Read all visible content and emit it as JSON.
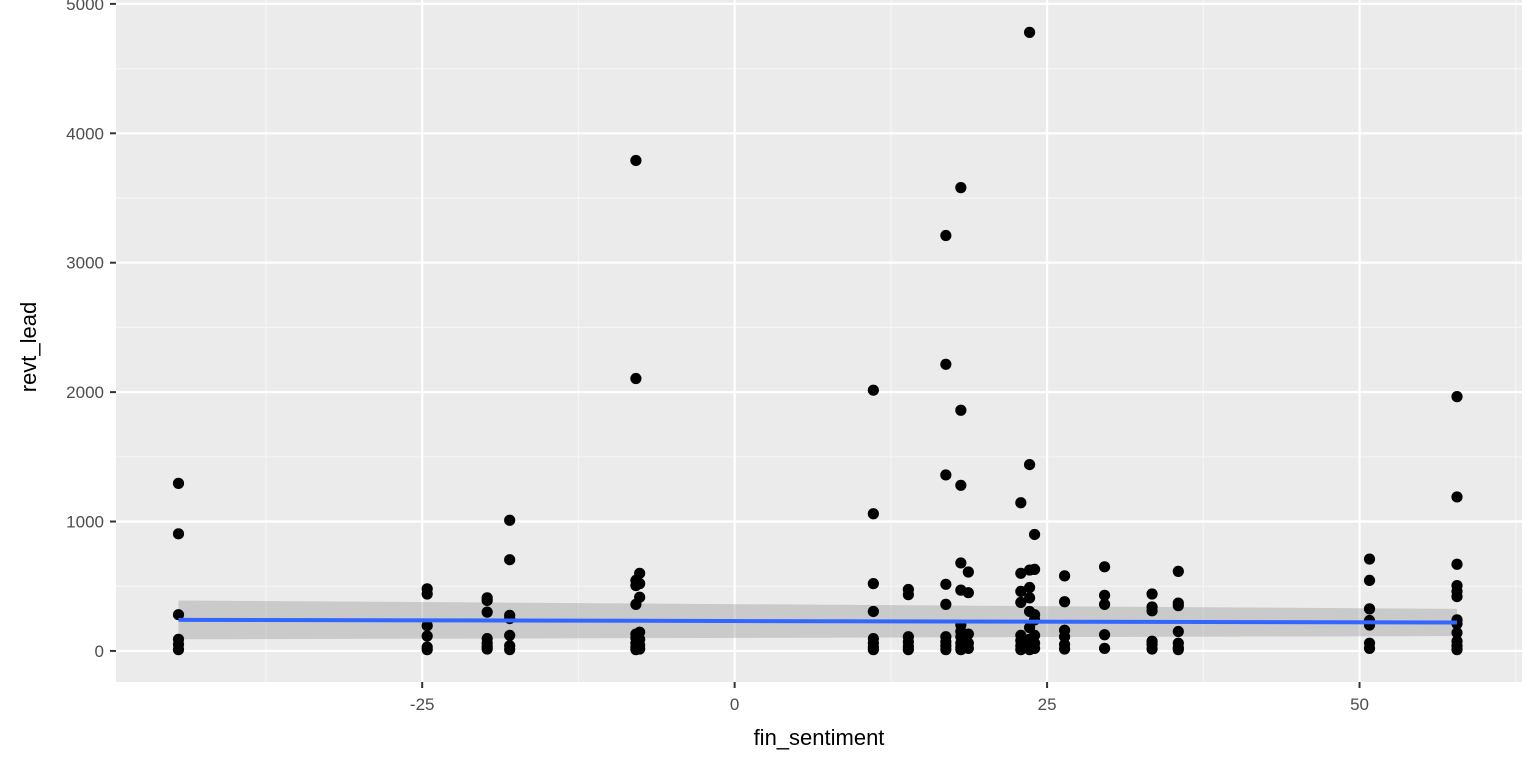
{
  "colors": {
    "panel_background": "#EBEBEB",
    "grid_major": "#FFFFFF",
    "grid_minor": "#F5F5F5",
    "point": "#000000",
    "fit_line": "#3366FF",
    "confidence_band": "#999999",
    "tick_text": "#4D4D4D",
    "tick_mark": "#333333"
  },
  "chart_data": {
    "type": "scatter",
    "title": "",
    "xlabel": "fin_sentiment",
    "ylabel": "revt_lead",
    "xlim": [
      -49.5,
      63
    ],
    "ylim": [
      -240,
      5030
    ],
    "x_ticks": [
      -25,
      0,
      25,
      50
    ],
    "x_tick_labels": [
      "-25",
      "0",
      "25",
      "50"
    ],
    "y_ticks": [
      0,
      1000,
      2000,
      3000,
      4000,
      5000
    ],
    "y_tick_labels": [
      "0",
      "1000",
      "2000",
      "3000",
      "4000",
      "5000"
    ],
    "grid": true,
    "legend": "none",
    "points": [
      [
        -44.5,
        1295
      ],
      [
        -44.5,
        905
      ],
      [
        -44.5,
        280
      ],
      [
        -44.5,
        90
      ],
      [
        -44.5,
        50
      ],
      [
        -44.5,
        10
      ],
      [
        -24.6,
        480
      ],
      [
        -24.6,
        440
      ],
      [
        -24.6,
        195
      ],
      [
        -24.6,
        115
      ],
      [
        -24.6,
        30
      ],
      [
        -24.6,
        10
      ],
      [
        -19.8,
        410
      ],
      [
        -19.8,
        390
      ],
      [
        -19.8,
        300
      ],
      [
        -19.8,
        95
      ],
      [
        -19.8,
        60
      ],
      [
        -19.8,
        35
      ],
      [
        -19.8,
        15
      ],
      [
        -18.0,
        1010
      ],
      [
        -18.0,
        705
      ],
      [
        -18.0,
        275
      ],
      [
        -18.0,
        250
      ],
      [
        -18.0,
        120
      ],
      [
        -18.0,
        40
      ],
      [
        -18.0,
        10
      ],
      [
        -7.9,
        3790
      ],
      [
        -7.9,
        2105
      ],
      [
        -7.9,
        545
      ],
      [
        -7.9,
        505
      ],
      [
        -7.9,
        360
      ],
      [
        -7.9,
        130
      ],
      [
        -7.9,
        100
      ],
      [
        -7.9,
        60
      ],
      [
        -7.9,
        30
      ],
      [
        -7.9,
        10
      ],
      [
        -7.6,
        600
      ],
      [
        -7.6,
        520
      ],
      [
        -7.6,
        415
      ],
      [
        -7.6,
        145
      ],
      [
        -7.6,
        90
      ],
      [
        -7.6,
        45
      ],
      [
        -7.6,
        15
      ],
      [
        11.1,
        2015
      ],
      [
        11.1,
        1060
      ],
      [
        11.1,
        520
      ],
      [
        11.1,
        305
      ],
      [
        11.1,
        95
      ],
      [
        11.1,
        60
      ],
      [
        11.1,
        30
      ],
      [
        11.1,
        10
      ],
      [
        13.9,
        475
      ],
      [
        13.9,
        435
      ],
      [
        13.9,
        110
      ],
      [
        13.9,
        70
      ],
      [
        13.9,
        35
      ],
      [
        13.9,
        10
      ],
      [
        16.9,
        3210
      ],
      [
        16.9,
        2215
      ],
      [
        16.9,
        1360
      ],
      [
        16.9,
        515
      ],
      [
        16.9,
        360
      ],
      [
        16.9,
        110
      ],
      [
        16.9,
        70
      ],
      [
        16.9,
        40
      ],
      [
        16.9,
        10
      ],
      [
        18.1,
        3580
      ],
      [
        18.1,
        1860
      ],
      [
        18.1,
        1280
      ],
      [
        18.1,
        680
      ],
      [
        18.1,
        470
      ],
      [
        18.1,
        200
      ],
      [
        18.1,
        150
      ],
      [
        18.1,
        110
      ],
      [
        18.1,
        60
      ],
      [
        18.1,
        30
      ],
      [
        18.1,
        10
      ],
      [
        18.7,
        610
      ],
      [
        18.7,
        450
      ],
      [
        18.7,
        130
      ],
      [
        18.7,
        60
      ],
      [
        18.7,
        20
      ],
      [
        22.9,
        1145
      ],
      [
        22.9,
        600
      ],
      [
        22.9,
        460
      ],
      [
        22.9,
        375
      ],
      [
        22.9,
        120
      ],
      [
        22.9,
        80
      ],
      [
        22.9,
        40
      ],
      [
        22.9,
        10
      ],
      [
        23.6,
        4780
      ],
      [
        23.6,
        1440
      ],
      [
        23.6,
        625
      ],
      [
        23.6,
        490
      ],
      [
        23.6,
        410
      ],
      [
        23.6,
        305
      ],
      [
        23.6,
        180
      ],
      [
        23.6,
        90
      ],
      [
        23.6,
        40
      ],
      [
        23.6,
        10
      ],
      [
        24.0,
        900
      ],
      [
        24.0,
        630
      ],
      [
        24.0,
        280
      ],
      [
        24.0,
        240
      ],
      [
        24.0,
        120
      ],
      [
        24.0,
        60
      ],
      [
        24.0,
        20
      ],
      [
        26.4,
        580
      ],
      [
        26.4,
        380
      ],
      [
        26.4,
        160
      ],
      [
        26.4,
        110
      ],
      [
        26.4,
        50
      ],
      [
        26.4,
        15
      ],
      [
        29.6,
        650
      ],
      [
        29.6,
        430
      ],
      [
        29.6,
        360
      ],
      [
        29.6,
        125
      ],
      [
        29.6,
        20
      ],
      [
        33.4,
        440
      ],
      [
        33.4,
        340
      ],
      [
        33.4,
        310
      ],
      [
        33.4,
        75
      ],
      [
        33.4,
        50
      ],
      [
        33.4,
        15
      ],
      [
        35.5,
        615
      ],
      [
        35.5,
        370
      ],
      [
        35.5,
        350
      ],
      [
        35.5,
        150
      ],
      [
        35.5,
        60
      ],
      [
        35.5,
        25
      ],
      [
        35.5,
        10
      ],
      [
        50.8,
        710
      ],
      [
        50.8,
        545
      ],
      [
        50.8,
        325
      ],
      [
        50.8,
        235
      ],
      [
        50.8,
        200
      ],
      [
        50.8,
        60
      ],
      [
        50.8,
        20
      ],
      [
        57.8,
        1965
      ],
      [
        57.8,
        1190
      ],
      [
        57.8,
        670
      ],
      [
        57.8,
        505
      ],
      [
        57.8,
        460
      ],
      [
        57.8,
        420
      ],
      [
        57.8,
        240
      ],
      [
        57.8,
        210
      ],
      [
        57.8,
        140
      ],
      [
        57.8,
        75
      ],
      [
        57.8,
        40
      ],
      [
        57.8,
        10
      ]
    ],
    "smooth": {
      "method": "linear",
      "x": [
        -44.5,
        57.8
      ],
      "y": [
        240,
        220
      ],
      "ci_lower": [
        90,
        115
      ],
      "ci_upper": [
        390,
        325
      ]
    }
  }
}
